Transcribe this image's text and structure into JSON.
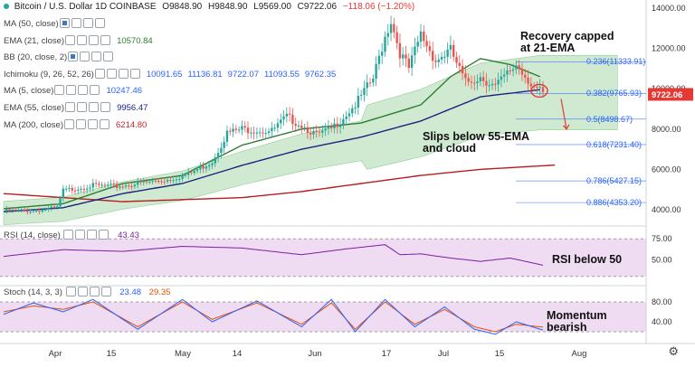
{
  "header": {
    "symbol_title": "Bitcoin / U.S. Dollar  1D  COINBASE",
    "ohlc": {
      "o_label": "O",
      "o": "9848.90",
      "h_label": "H",
      "h": "9848.90",
      "l_label": "L",
      "l": "9569.00",
      "c_label": "C",
      "c": "9722.06",
      "chg": "−118.06 (−1.20%)"
    }
  },
  "indicators": [
    {
      "name": "MA (50, close)",
      "values": [],
      "color": "#2962ff",
      "checked": true
    },
    {
      "name": "EMA (21, close)",
      "values": [
        "10570.84"
      ],
      "color": "#2e7d32",
      "checked": false
    },
    {
      "name": "BB (20, close, 2)",
      "values": [],
      "color": "#2962ff",
      "checked": true
    },
    {
      "name": "Ichimoku (9, 26, 52, 26)",
      "values": [
        "10091.65",
        "11136.81",
        "9722.07",
        "11093.55",
        "9762.35"
      ],
      "color": "#2962ff",
      "checked": false
    },
    {
      "name": "MA (5, close)",
      "values": [
        "10247.46"
      ],
      "color": "#2962ff",
      "checked": false
    },
    {
      "name": "EMA (55, close)",
      "values": [
        "9956.47"
      ],
      "color": "#1a237e",
      "checked": false
    },
    {
      "name": "MA (200, close)",
      "values": [
        "6214.80"
      ],
      "color": "#c62828",
      "checked": false
    }
  ],
  "rsi_header": {
    "name": "RSI (14, close)",
    "value": "43.43",
    "color": "#7b1fa2"
  },
  "stoch_header": {
    "name": "Stoch (14, 3, 3)",
    "value_k": "23.48",
    "value_d": "29.35",
    "color_k": "#2962ff",
    "color_d": "#e65100"
  },
  "price_axis": {
    "labels": [
      "14000.00",
      "12000.00",
      "10000.00",
      "8000.00",
      "6000.00",
      "4000.00"
    ],
    "last_price": "9722.06",
    "last_price_color": "#e53935"
  },
  "rsi_axis": {
    "labels": [
      "75.00",
      "50.00"
    ]
  },
  "stoch_axis": {
    "labels": [
      "80.00",
      "40.00"
    ]
  },
  "time_axis": {
    "labels": [
      "Apr",
      "15",
      "May",
      "14",
      "Jun",
      "17",
      "Jul",
      "15",
      "Aug"
    ]
  },
  "annotations": {
    "recovery": "Recovery capped\nat 21-EMA",
    "slips": "Slips below 55-EMA\nand cloud",
    "rsi": "RSI below 50",
    "momentum": "Momentum\nbearish"
  },
  "fib_levels": [
    {
      "label": "0.236(11333.91)",
      "price": 11333.91,
      "color": "#2962ff"
    },
    {
      "label": "0.382(9765.93)",
      "price": 9765.93,
      "color": "#2962ff"
    },
    {
      "label": "0.5(8498.67)",
      "price": 8498.67,
      "color": "#2962ff"
    },
    {
      "label": "0.618(7231.40)",
      "price": 7231.4,
      "color": "#2962ff"
    },
    {
      "label": "0.786(5427.15)",
      "price": 5427.15,
      "color": "#2962ff"
    },
    {
      "label": "0.886(4353.20)",
      "price": 4353.2,
      "color": "#2962ff"
    }
  ],
  "colors": {
    "up": "#26a69a",
    "down": "#ef5350",
    "cloud": "#c8e6c9",
    "ema21": "#2e7d32",
    "ema55": "#1a237e",
    "ma200": "#b71c1c",
    "rsi_band": "#e1bee7",
    "stoch_band": "#e1bee7"
  },
  "chart_data": {
    "type": "line",
    "title": "Bitcoin / U.S. Dollar 1D COINBASE",
    "price_range": [
      3500,
      14500
    ],
    "series": [
      {
        "name": "EMA (21, close)",
        "anchors": [
          [
            0,
            4050
          ],
          [
            20,
            4300
          ],
          [
            40,
            5300
          ],
          [
            60,
            5700
          ],
          [
            80,
            7200
          ],
          [
            100,
            8000
          ],
          [
            120,
            8300
          ],
          [
            140,
            9200
          ],
          [
            150,
            10600
          ],
          [
            160,
            11500
          ],
          [
            170,
            11200
          ],
          [
            180,
            10600
          ]
        ]
      },
      {
        "name": "EMA (55, close)",
        "anchors": [
          [
            0,
            3900
          ],
          [
            20,
            4100
          ],
          [
            40,
            4800
          ],
          [
            60,
            5300
          ],
          [
            80,
            6200
          ],
          [
            100,
            7000
          ],
          [
            120,
            7600
          ],
          [
            140,
            8400
          ],
          [
            160,
            9600
          ],
          [
            180,
            9956
          ]
        ]
      },
      {
        "name": "MA (200, close)",
        "anchors": [
          [
            0,
            4800
          ],
          [
            40,
            4400
          ],
          [
            80,
            4600
          ],
          [
            100,
            4900
          ],
          [
            120,
            5300
          ],
          [
            140,
            5700
          ],
          [
            160,
            6000
          ],
          [
            185,
            6215
          ]
        ]
      }
    ],
    "candle_path": [
      [
        0,
        3950
      ],
      [
        10,
        3950
      ],
      [
        18,
        4100
      ],
      [
        20,
        4950
      ],
      [
        30,
        5200
      ],
      [
        38,
        5150
      ],
      [
        45,
        5300
      ],
      [
        55,
        5500
      ],
      [
        62,
        5750
      ],
      [
        70,
        6400
      ],
      [
        75,
        7800
      ],
      [
        80,
        8000
      ],
      [
        90,
        7900
      ],
      [
        95,
        8600
      ],
      [
        100,
        8200
      ],
      [
        105,
        7700
      ],
      [
        110,
        8000
      ],
      [
        118,
        9200
      ],
      [
        124,
        10500
      ],
      [
        128,
        12600
      ],
      [
        130,
        13400
      ],
      [
        133,
        11800
      ],
      [
        136,
        11000
      ],
      [
        140,
        12700
      ],
      [
        145,
        11400
      ],
      [
        150,
        11900
      ],
      [
        155,
        10300
      ],
      [
        160,
        10600
      ],
      [
        165,
        10100
      ],
      [
        172,
        11200
      ],
      [
        178,
        10100
      ],
      [
        181,
        9722
      ]
    ],
    "rsi": [
      [
        0,
        54
      ],
      [
        20,
        62
      ],
      [
        40,
        60
      ],
      [
        60,
        66
      ],
      [
        80,
        64
      ],
      [
        100,
        56
      ],
      [
        115,
        63
      ],
      [
        128,
        68
      ],
      [
        133,
        56
      ],
      [
        140,
        57
      ],
      [
        150,
        52
      ],
      [
        160,
        48
      ],
      [
        170,
        52
      ],
      [
        181,
        43.43
      ]
    ],
    "rsi_range": [
      20,
      85
    ],
    "stoch_k": [
      [
        0,
        55
      ],
      [
        10,
        78
      ],
      [
        20,
        60
      ],
      [
        30,
        85
      ],
      [
        45,
        25
      ],
      [
        60,
        85
      ],
      [
        70,
        40
      ],
      [
        85,
        82
      ],
      [
        100,
        30
      ],
      [
        110,
        85
      ],
      [
        118,
        20
      ],
      [
        128,
        85
      ],
      [
        138,
        30
      ],
      [
        148,
        70
      ],
      [
        158,
        25
      ],
      [
        165,
        15
      ],
      [
        172,
        40
      ],
      [
        181,
        23.48
      ]
    ],
    "stoch_d": [
      [
        0,
        60
      ],
      [
        10,
        72
      ],
      [
        20,
        65
      ],
      [
        30,
        80
      ],
      [
        45,
        30
      ],
      [
        60,
        80
      ],
      [
        70,
        45
      ],
      [
        85,
        78
      ],
      [
        100,
        35
      ],
      [
        110,
        78
      ],
      [
        118,
        25
      ],
      [
        128,
        80
      ],
      [
        138,
        35
      ],
      [
        148,
        65
      ],
      [
        158,
        30
      ],
      [
        165,
        20
      ],
      [
        172,
        35
      ],
      [
        181,
        29.35
      ]
    ],
    "stoch_range": [
      0,
      100
    ]
  }
}
